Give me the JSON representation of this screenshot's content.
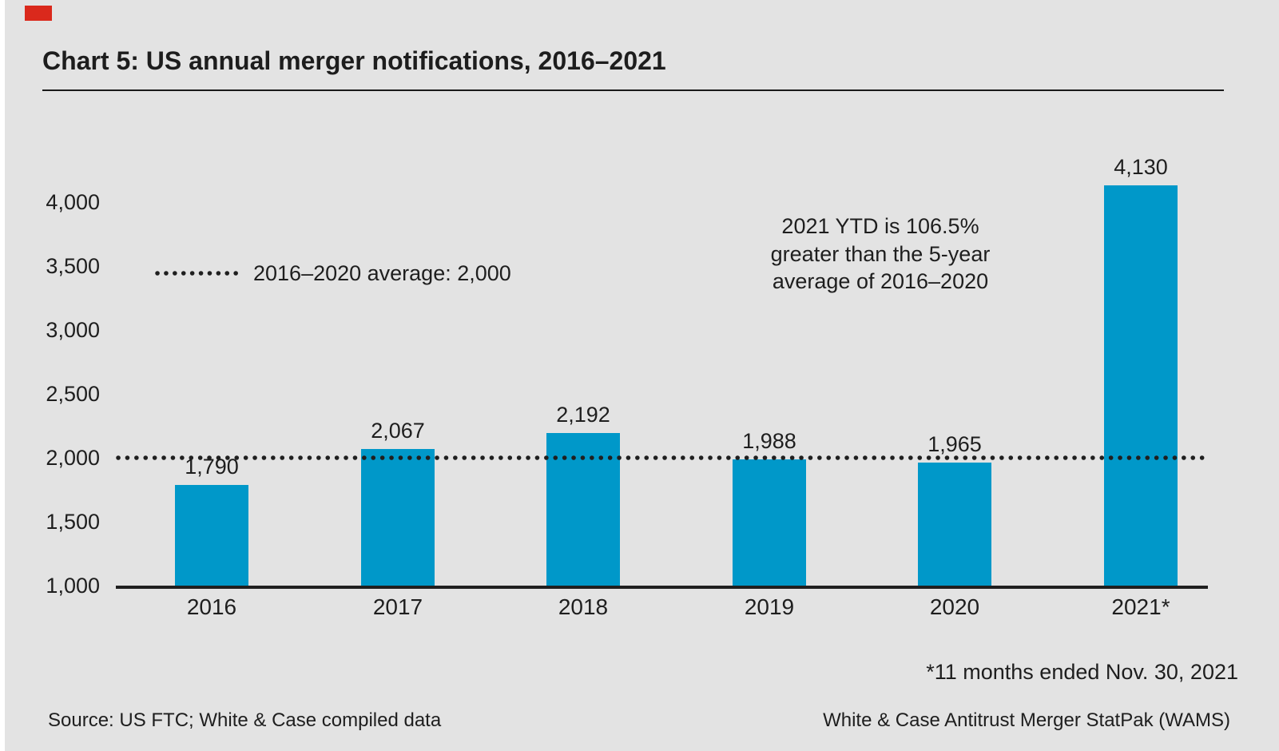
{
  "page": {
    "title": "Chart 5: US annual merger notifications, 2016–2021",
    "background": "#e3e3e3",
    "brand_red": "#da291c",
    "text_color": "#1e1e1e"
  },
  "chart_data": {
    "type": "bar",
    "title": "Chart 5: US annual merger notifications, 2016–2021",
    "categories": [
      "2016",
      "2017",
      "2018",
      "2019",
      "2020",
      "2021*"
    ],
    "values": [
      1790,
      2067,
      2192,
      1988,
      1965,
      4130
    ],
    "value_labels": [
      "1,790",
      "2,067",
      "2,192",
      "1,988",
      "1,965",
      "4,130"
    ],
    "bar_color": "#0098c9",
    "ylim": [
      1000,
      4130
    ],
    "yticks": [
      1000,
      1500,
      2000,
      2500,
      3000,
      3500,
      4000
    ],
    "ytick_labels": [
      "1,000",
      "1,500",
      "2,000",
      "2,500",
      "3,000",
      "3,500",
      "4,000"
    ],
    "grid": "off",
    "legend_position": "upper-left-inside",
    "average_line": {
      "value": 2000,
      "style": "dotted",
      "color": "#1f1f1f",
      "label": "2016–2020 average: 2,000"
    },
    "annotation": {
      "lines": [
        "2021 YTD is 106.5%",
        "greater than the 5-year",
        "average of 2016–2020"
      ]
    },
    "footnote": "*11 months ended Nov. 30, 2021"
  },
  "footer": {
    "source": "Source: US FTC; White & Case compiled data",
    "right": "White & Case Antitrust Merger StatPak (WAMS)"
  }
}
